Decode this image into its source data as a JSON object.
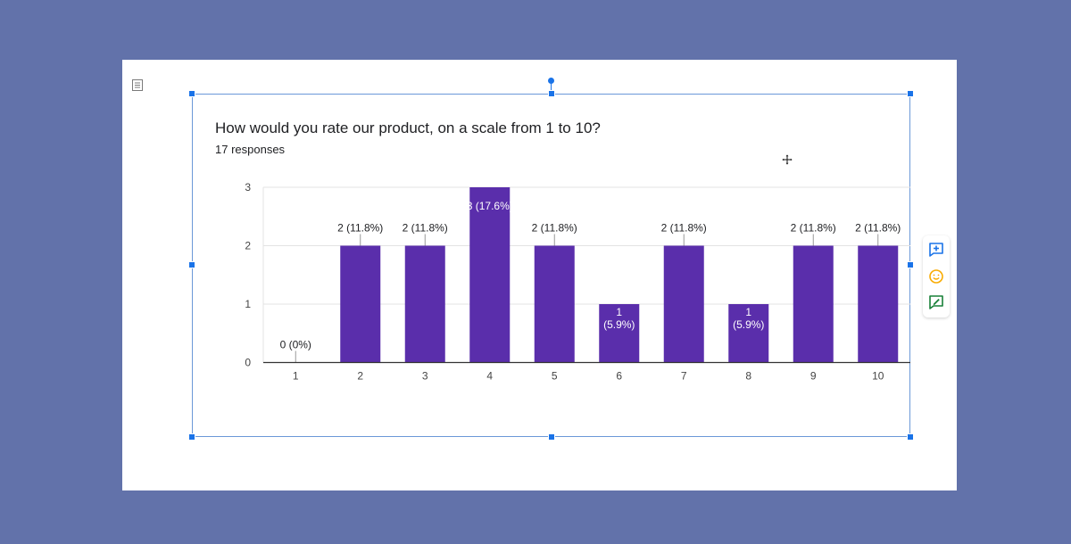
{
  "chart_data": {
    "type": "bar",
    "title": "How would you rate our product, on a scale from 1 to 10?",
    "subtitle": "17 responses",
    "categories": [
      "1",
      "2",
      "3",
      "4",
      "5",
      "6",
      "7",
      "8",
      "9",
      "10"
    ],
    "values": [
      0,
      2,
      2,
      3,
      2,
      1,
      2,
      1,
      2,
      2
    ],
    "data_labels": [
      [
        "0 (0%)"
      ],
      [
        "2 (11.8%)"
      ],
      [
        "2 (11.8%)"
      ],
      [
        "3 (17.6%)"
      ],
      [
        "2 (11.8%)"
      ],
      [
        "1",
        "(5.9%)"
      ],
      [
        "2 (11.8%)"
      ],
      [
        "1",
        "(5.9%)"
      ],
      [
        "2 (11.8%)"
      ],
      [
        "2 (11.8%)"
      ]
    ],
    "y_ticks": [
      0,
      1,
      2,
      3
    ],
    "ylim": [
      0,
      3
    ],
    "grid": true,
    "bar_color": "#5a2eab",
    "label_color": "#202124"
  },
  "colors": {
    "background": "#6272aa",
    "page": "#ffffff",
    "selection": "#1a73e8"
  },
  "side_toolbar": {
    "items": [
      {
        "name": "add-comment-icon",
        "color": "#1a73e8"
      },
      {
        "name": "emoji-reaction-icon",
        "color": "#f9ab00"
      },
      {
        "name": "suggest-edit-icon",
        "color": "#188038"
      }
    ]
  }
}
